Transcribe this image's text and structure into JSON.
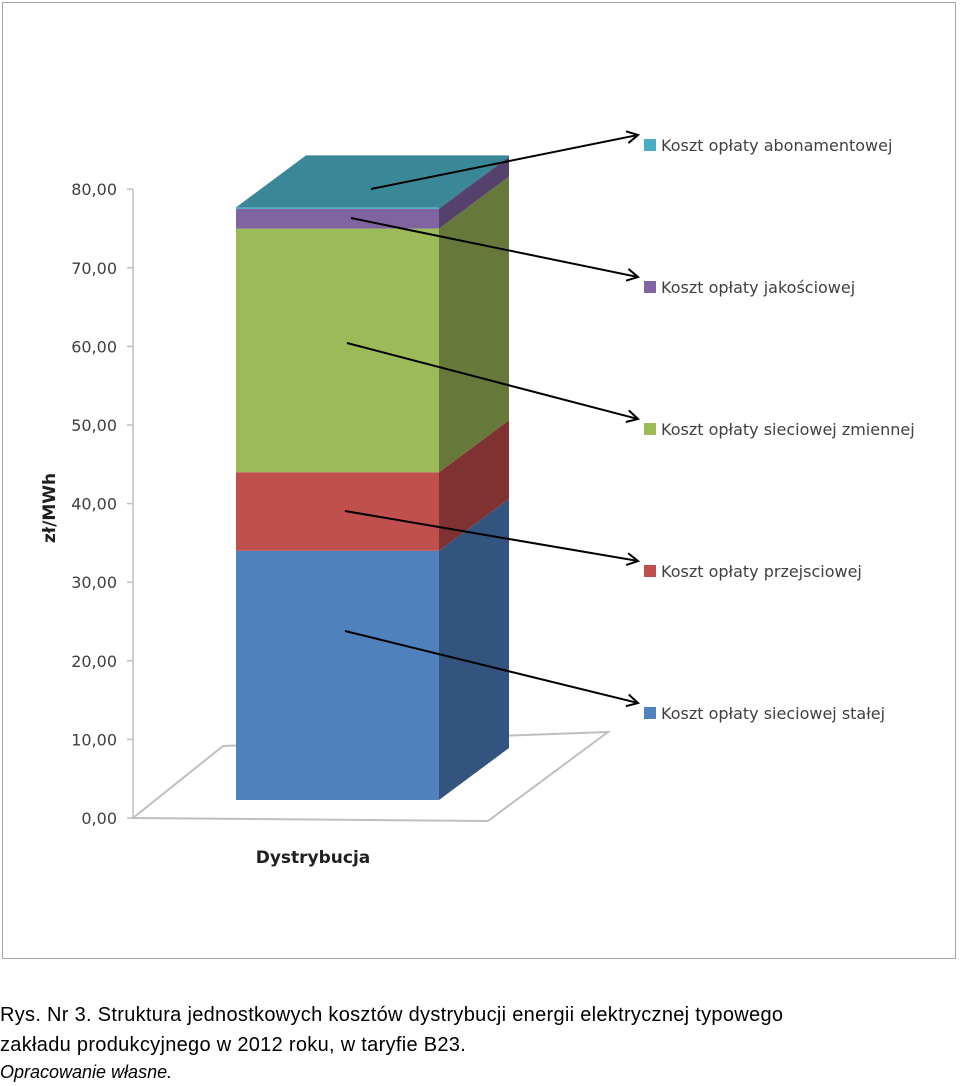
{
  "chart_data": {
    "type": "bar",
    "stacked": true,
    "three_d": true,
    "categories": [
      "Dystrybucja"
    ],
    "ylabel": "zł/MWh",
    "ylim": [
      0,
      80
    ],
    "yticks": [
      "0,00",
      "10,00",
      "20,00",
      "30,00",
      "40,00",
      "50,00",
      "60,00",
      "70,00",
      "80,00"
    ],
    "ytick_values": [
      0,
      10,
      20,
      30,
      40,
      50,
      60,
      70,
      80
    ],
    "grid": false,
    "legend_position": "right",
    "series": [
      {
        "name": "Koszt opłaty sieciowej stałej",
        "values": [
          31.7
        ],
        "color": "#4f81bd",
        "side": "#345480"
      },
      {
        "name": "Koszt opłaty przejsciowej",
        "values": [
          10.0
        ],
        "color": "#c0504d",
        "side": "#7f3231"
      },
      {
        "name": "Koszt opłaty sieciowej zmiennej",
        "values": [
          31.0
        ],
        "color": "#9bbb59",
        "side": "#66793a"
      },
      {
        "name": "Koszt opłaty jakościowej",
        "values": [
          2.5
        ],
        "color": "#8064a2",
        "side": "#54426c"
      },
      {
        "name": "Koszt opłaty abonamentowej",
        "values": [
          0.2
        ],
        "color": "#4bacc6",
        "side": "#327586",
        "top": "#3a8798"
      }
    ],
    "legend_order": [
      4,
      3,
      2,
      1,
      0
    ]
  },
  "caption": {
    "line1": "Rys. Nr 3. Struktura jednostkowych kosztów dystrybucji energii elektrycznej typowego",
    "line2": "zakładu produkcyjnego w 2012 roku, w taryfie B23.",
    "source": "Opracowanie własne."
  }
}
